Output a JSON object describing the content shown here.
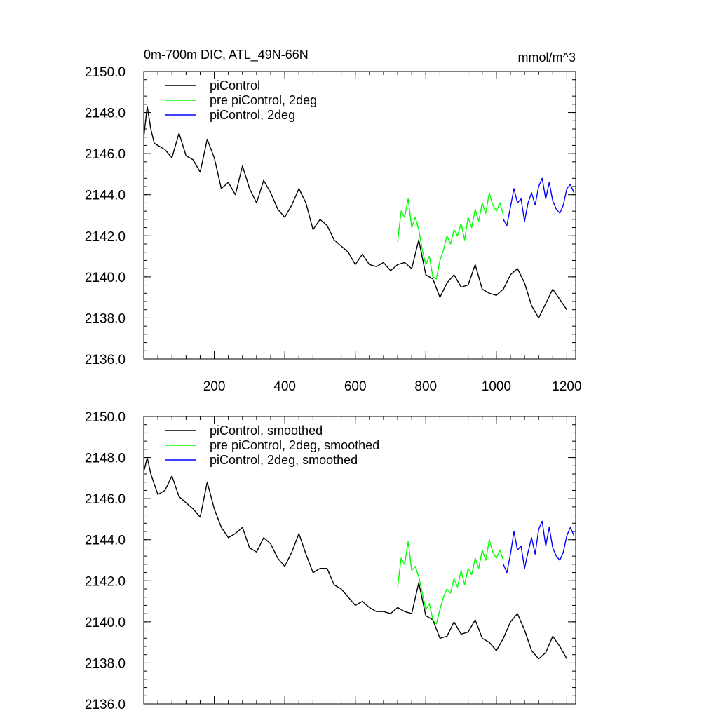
{
  "chart_data": [
    {
      "type": "line",
      "title_left": "0m-700m DIC, ATL_49N-66N",
      "title_right": "mmol/m^3",
      "xlabel": "",
      "ylabel": "",
      "xlim": [
        0,
        1225
      ],
      "ylim": [
        2136,
        2150
      ],
      "x_ticks": [
        200,
        400,
        600,
        800,
        1000,
        1200
      ],
      "x_tick_labels": [
        "200",
        "400",
        "600",
        "800",
        "1000",
        "1200"
      ],
      "y_ticks": [
        2136,
        2138,
        2140,
        2142,
        2144,
        2146,
        2148,
        2150
      ],
      "y_tick_labels": [
        "2136.0",
        "2138.0",
        "2140.0",
        "2142.0",
        "2144.0",
        "2146.0",
        "2148.0",
        "2150.0"
      ],
      "legend_position": "top-left",
      "series": [
        {
          "name": "piControl",
          "color": "#000000",
          "x": [
            0,
            10,
            20,
            30,
            40,
            60,
            80,
            100,
            120,
            140,
            160,
            180,
            200,
            220,
            240,
            260,
            280,
            300,
            320,
            340,
            360,
            380,
            400,
            420,
            440,
            460,
            480,
            500,
            520,
            540,
            560,
            580,
            600,
            620,
            640,
            660,
            680,
            700,
            720,
            740,
            760,
            780,
            800,
            820,
            840,
            860,
            880,
            900,
            920,
            940,
            960,
            980,
            1000,
            1020,
            1040,
            1060,
            1080,
            1100,
            1120,
            1140,
            1160,
            1180,
            1200
          ],
          "y": [
            2146.8,
            2148.3,
            2147.2,
            2146.5,
            2146.4,
            2146.2,
            2145.8,
            2147.0,
            2145.9,
            2145.7,
            2145.1,
            2146.7,
            2145.8,
            2144.3,
            2144.6,
            2144.0,
            2145.4,
            2144.3,
            2143.6,
            2144.7,
            2144.1,
            2143.3,
            2142.9,
            2143.5,
            2144.3,
            2143.6,
            2142.3,
            2142.8,
            2142.5,
            2141.8,
            2141.5,
            2141.2,
            2140.6,
            2141.1,
            2140.6,
            2140.5,
            2140.7,
            2140.3,
            2140.6,
            2140.7,
            2140.4,
            2141.8,
            2140.1,
            2139.9,
            2139.0,
            2139.7,
            2140.1,
            2139.5,
            2139.6,
            2140.6,
            2139.4,
            2139.2,
            2139.1,
            2139.4,
            2140.1,
            2140.4,
            2139.7,
            2138.6,
            2138.0,
            2138.7,
            2139.4,
            2138.9,
            2138.4
          ]
        },
        {
          "name": "pre piControl, 2deg",
          "color": "#00ff00",
          "x": [
            720,
            730,
            740,
            750,
            760,
            770,
            780,
            790,
            800,
            810,
            820,
            830,
            840,
            850,
            860,
            870,
            880,
            890,
            900,
            910,
            920,
            930,
            940,
            950,
            960,
            970,
            980,
            990,
            1000,
            1010,
            1020
          ],
          "y": [
            2141.7,
            2143.2,
            2142.9,
            2143.8,
            2142.4,
            2142.9,
            2142.3,
            2141.3,
            2140.6,
            2141.0,
            2140.0,
            2139.9,
            2140.8,
            2141.3,
            2142.0,
            2141.6,
            2142.3,
            2142.0,
            2142.6,
            2141.8,
            2142.9,
            2142.4,
            2143.3,
            2142.7,
            2143.6,
            2143.1,
            2144.1,
            2143.5,
            2143.2,
            2143.6,
            2143.0
          ]
        },
        {
          "name": "piControl, 2deg",
          "color": "#0000ff",
          "x": [
            1020,
            1030,
            1040,
            1050,
            1060,
            1070,
            1080,
            1090,
            1100,
            1110,
            1120,
            1130,
            1140,
            1150,
            1160,
            1170,
            1180,
            1190,
            1200,
            1210,
            1220
          ],
          "y": [
            2142.8,
            2142.5,
            2143.4,
            2144.3,
            2143.6,
            2143.8,
            2142.7,
            2143.6,
            2144.1,
            2143.5,
            2144.4,
            2144.8,
            2143.8,
            2144.6,
            2143.7,
            2143.3,
            2143.1,
            2143.5,
            2144.3,
            2144.5,
            2144.1
          ]
        }
      ]
    },
    {
      "type": "line",
      "title_left": "",
      "title_right": "",
      "xlabel": "",
      "ylabel": "",
      "xlim": [
        0,
        1225
      ],
      "ylim": [
        2136,
        2150
      ],
      "x_ticks": [
        200,
        400,
        600,
        800,
        1000,
        1200
      ],
      "x_tick_labels": [],
      "y_ticks": [
        2136,
        2138,
        2140,
        2142,
        2144,
        2146,
        2148,
        2150
      ],
      "y_tick_labels": [
        "2136.0",
        "2138.0",
        "2140.0",
        "2142.0",
        "2144.0",
        "2146.0",
        "2148.0",
        "2150.0"
      ],
      "legend_position": "top-left",
      "series": [
        {
          "name": "piControl, smoothed",
          "color": "#000000",
          "x": [
            0,
            10,
            20,
            30,
            40,
            60,
            80,
            100,
            120,
            140,
            160,
            180,
            200,
            220,
            240,
            260,
            280,
            300,
            320,
            340,
            360,
            380,
            400,
            420,
            440,
            460,
            480,
            500,
            520,
            540,
            560,
            580,
            600,
            620,
            640,
            660,
            680,
            700,
            720,
            740,
            760,
            780,
            800,
            820,
            840,
            860,
            880,
            900,
            920,
            940,
            960,
            980,
            1000,
            1020,
            1040,
            1060,
            1080,
            1100,
            1120,
            1140,
            1160,
            1180,
            1200
          ],
          "y": [
            2147.3,
            2148.0,
            2147.2,
            2146.7,
            2146.2,
            2146.4,
            2147.1,
            2146.1,
            2145.8,
            2145.5,
            2145.1,
            2146.8,
            2145.5,
            2144.6,
            2144.1,
            2144.3,
            2144.6,
            2143.6,
            2143.4,
            2144.1,
            2143.8,
            2143.1,
            2142.7,
            2143.4,
            2144.3,
            2143.3,
            2142.4,
            2142.6,
            2142.6,
            2141.8,
            2141.6,
            2141.2,
            2140.8,
            2141.0,
            2140.7,
            2140.5,
            2140.5,
            2140.4,
            2140.7,
            2140.5,
            2140.4,
            2141.9,
            2140.3,
            2140.1,
            2139.2,
            2139.3,
            2140.0,
            2139.4,
            2139.5,
            2140.1,
            2139.2,
            2139.0,
            2138.6,
            2139.2,
            2140.0,
            2140.4,
            2139.6,
            2138.6,
            2138.2,
            2138.5,
            2139.3,
            2138.8,
            2138.2
          ]
        },
        {
          "name": "pre piControl, 2deg, smoothed",
          "color": "#00ff00",
          "x": [
            720,
            730,
            740,
            750,
            760,
            770,
            780,
            790,
            800,
            810,
            820,
            830,
            840,
            850,
            860,
            870,
            880,
            890,
            900,
            910,
            920,
            930,
            940,
            950,
            960,
            970,
            980,
            990,
            1000,
            1010,
            1020
          ],
          "y": [
            2141.7,
            2143.1,
            2142.8,
            2143.9,
            2142.5,
            2142.7,
            2142.2,
            2141.4,
            2140.6,
            2140.9,
            2140.1,
            2139.9,
            2140.6,
            2141.2,
            2141.6,
            2141.4,
            2142.1,
            2141.7,
            2142.5,
            2141.8,
            2142.6,
            2142.3,
            2143.1,
            2142.6,
            2143.5,
            2143.0,
            2144.0,
            2143.4,
            2143.1,
            2143.5,
            2143.0
          ]
        },
        {
          "name": "piControl, 2deg, smoothed",
          "color": "#0000ff",
          "x": [
            1020,
            1030,
            1040,
            1050,
            1060,
            1070,
            1080,
            1090,
            1100,
            1110,
            1120,
            1130,
            1140,
            1150,
            1160,
            1170,
            1180,
            1190,
            1200,
            1210,
            1220
          ],
          "y": [
            2142.8,
            2142.4,
            2143.3,
            2144.4,
            2143.5,
            2143.7,
            2142.6,
            2143.4,
            2144.1,
            2143.3,
            2144.5,
            2144.9,
            2143.7,
            2144.6,
            2143.6,
            2143.2,
            2143.0,
            2143.4,
            2144.2,
            2144.6,
            2144.2
          ]
        }
      ]
    }
  ]
}
